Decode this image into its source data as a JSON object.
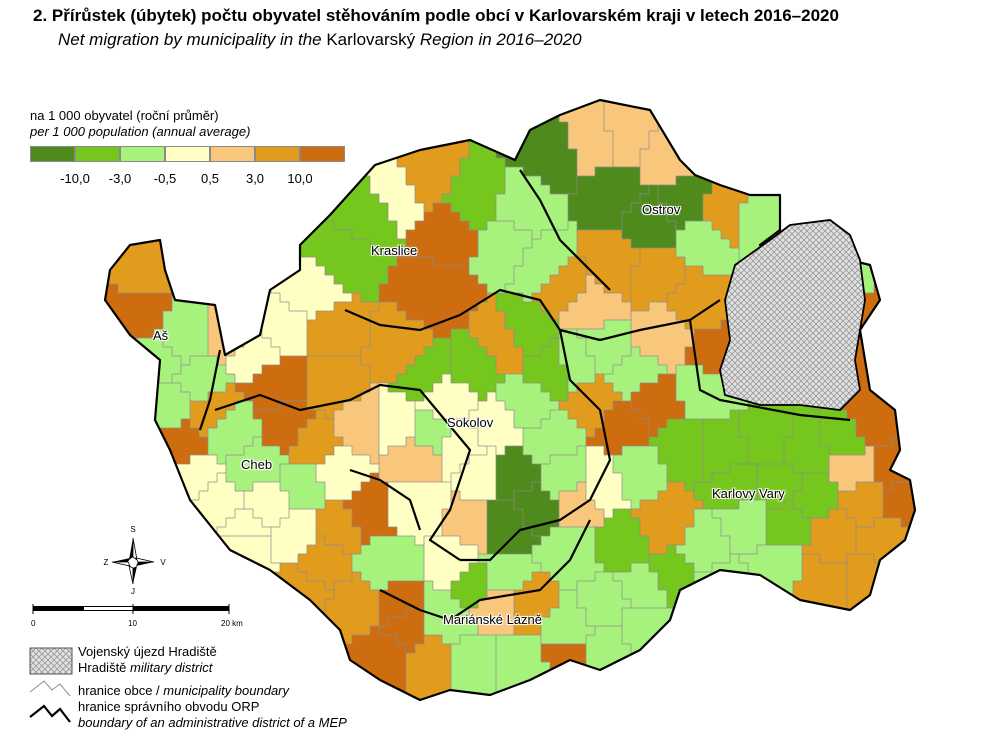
{
  "title": "2. Přírůstek (úbytek) počtu obyvatel stěhováním podle obcí v Karlovarském kraji v letech 2016–2020",
  "subtitle": {
    "part1": "Net migration by municipality in the ",
    "region": "Karlovarský",
    "part2": " Region in 2016–2020"
  },
  "legend": {
    "heading_cz": "na 1 000 obyvatel (roční průměr)",
    "heading_en": "per 1 000 population (annual average)",
    "colors": [
      "#4e8a1c",
      "#76c71d",
      "#a7f27d",
      "#ffffc4",
      "#f9c77c",
      "#e29c1d",
      "#cd6d10"
    ],
    "breaks": [
      "-10,0",
      "-3,0",
      "-0,5",
      "0,5",
      "3,0",
      "10,0"
    ]
  },
  "places": {
    "as": "Aš",
    "cheb": "Cheb",
    "kraslice": "Kraslice",
    "sokolov": "Sokolov",
    "ostrov": "Ostrov",
    "karlovy_vary": "Karlovy Vary",
    "marianske_lazne": "Mariánské Lázně"
  },
  "compass": {
    "north": "S",
    "south": "J",
    "west": "Z",
    "east": "V"
  },
  "scale": {
    "labels": [
      "0",
      "10",
      "20 km"
    ]
  },
  "key": {
    "military_cz": "Vojenský újezd Hradiště",
    "military_en_name": "Hradiště",
    "military_en_rest": " military district",
    "muni_cz": "hranice obce / ",
    "muni_en": "municipality boundary",
    "orp_cz": "hranice správního obvodu ORP",
    "orp_en": "boundary of an administrative district of a MEP"
  },
  "colors": {
    "muni_border": "#8c8c8c",
    "orp_border": "#000000",
    "military_fill": "#d6d6d6"
  }
}
